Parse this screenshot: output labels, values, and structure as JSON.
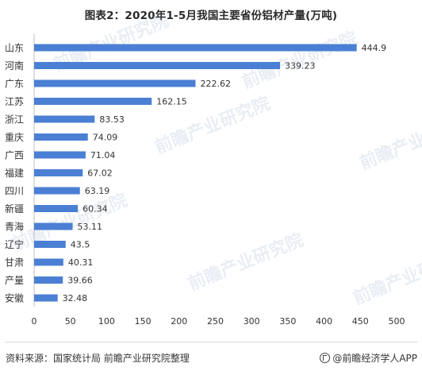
{
  "title": "图表2：2020年1-5月我国主要省份铝材产量(万吨)",
  "source": "资料来源：国家统计局 前瞻产业研究院整理",
  "brand": "@前瞻经济学人APP",
  "watermark_text": "前瞻产业研究院",
  "colors": {
    "bar": "#4a7fd4",
    "axis": "#bfbfbf",
    "text": "#333333"
  },
  "chart_data": {
    "type": "bar",
    "orientation": "horizontal",
    "title": "图表2：2020年1-5月我国主要省份铝材产量(万吨)",
    "xlabel": "",
    "ylabel": "",
    "xlim": [
      0,
      500
    ],
    "xticks": [
      0,
      50,
      100,
      150,
      200,
      250,
      300,
      350,
      400,
      450,
      500
    ],
    "grid": false,
    "legend": "none",
    "categories": [
      "山东",
      "河南",
      "广东",
      "江苏",
      "浙江",
      "重庆",
      "广西",
      "福建",
      "四川",
      "新疆",
      "青海",
      "辽宁",
      "甘肃",
      "产量",
      "安徽"
    ],
    "values": [
      444.9,
      339.23,
      222.62,
      162.15,
      83.53,
      74.09,
      71.04,
      67.02,
      63.19,
      60.34,
      53.11,
      43.5,
      40.31,
      39.66,
      32.48
    ],
    "value_labels": [
      "444.9",
      "339.23",
      "222.62",
      "162.15",
      "83.53",
      "74.09",
      "71.04",
      "67.02",
      "63.19",
      "60.34",
      "53.11",
      "43.5",
      "40.31",
      "39.66",
      "32.48"
    ]
  }
}
